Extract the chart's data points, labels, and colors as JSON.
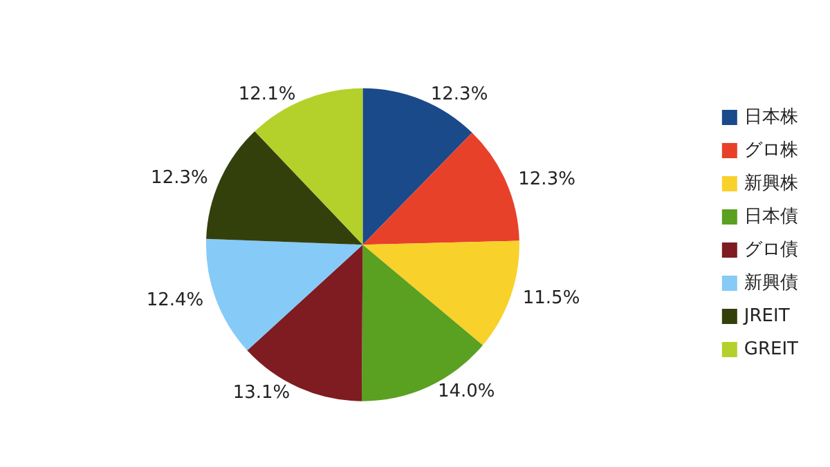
{
  "chart_data": {
    "type": "pie",
    "categories": [
      "日本株",
      "グロ株",
      "新興株",
      "日本債",
      "グロ債",
      "新興債",
      "JREIT",
      "GREIT"
    ],
    "values": [
      12.3,
      12.3,
      11.5,
      14.0,
      13.1,
      12.4,
      12.3,
      12.1
    ],
    "value_labels": [
      "12.3%",
      "12.3%",
      "11.5%",
      "14.0%",
      "13.1%",
      "12.4%",
      "12.3%",
      "12.1%"
    ],
    "colors": [
      "#1a4a8a",
      "#e8412a",
      "#f8d12a",
      "#5aa021",
      "#7e1c22",
      "#86caf7",
      "#34400c",
      "#b3d12a"
    ],
    "legend": "right"
  }
}
